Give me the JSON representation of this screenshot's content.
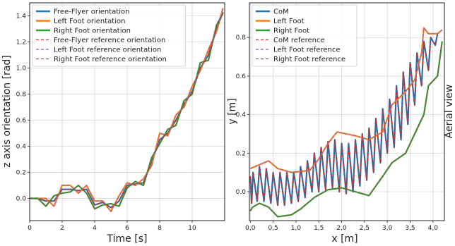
{
  "chart_data": [
    {
      "type": "line",
      "title": "",
      "xlabel": "Time [s]",
      "ylabel": "z axis orientation [rad]",
      "xlim": [
        0,
        12
      ],
      "ylim": [
        -0.17,
        1.5
      ],
      "xticks": [
        0,
        2,
        4,
        6,
        8,
        10
      ],
      "yticks": [
        0.0,
        0.2,
        0.4,
        0.6,
        0.8,
        1.0,
        1.2,
        1.4
      ],
      "xtick_labels": [
        "0",
        "2",
        "4",
        "6",
        "8",
        "10"
      ],
      "ytick_labels": [
        "0.0",
        "0.2",
        "0.4",
        "0.6",
        "0.8",
        "1.0",
        "1.2",
        "1.4"
      ],
      "grid": true,
      "legend_position": "top-left",
      "series": [
        {
          "name": "Free-Flyer orientation",
          "color": "#1f77b4",
          "style": "solid",
          "x": [
            0,
            0.5,
            1,
            1.5,
            2,
            2.5,
            3,
            3.5,
            4,
            4.5,
            5,
            5.5,
            6,
            6.5,
            7,
            7.5,
            8,
            8.5,
            9,
            9.5,
            10,
            10.5,
            11,
            11.5,
            11.9
          ],
          "y": [
            0,
            0,
            -0.02,
            -0.02,
            0.07,
            0.07,
            0.06,
            0.07,
            -0.05,
            -0.03,
            -0.07,
            -0.02,
            0.1,
            0.11,
            0.12,
            0.28,
            0.45,
            0.5,
            0.6,
            0.72,
            0.82,
            1.0,
            1.1,
            1.3,
            1.43
          ]
        },
        {
          "name": "Left Foot orientation",
          "color": "#ff7f0e",
          "style": "solid",
          "x": [
            0,
            0.5,
            1,
            1.5,
            2,
            2.5,
            3,
            3.5,
            4,
            4.5,
            5,
            5.5,
            6,
            6.5,
            7,
            7.5,
            8,
            8.5,
            9,
            9.5,
            10,
            10.5,
            11,
            11.5,
            11.9
          ],
          "y": [
            0,
            0,
            0,
            -0.06,
            0.1,
            0.1,
            0.04,
            0.1,
            -0.02,
            -0.02,
            -0.1,
            0.02,
            0.12,
            0.1,
            0.15,
            0.25,
            0.5,
            0.48,
            0.64,
            0.7,
            0.86,
            0.98,
            1.14,
            1.28,
            1.46
          ]
        },
        {
          "name": "Right Foot orientation",
          "color": "#2ca02c",
          "style": "solid",
          "x": [
            0,
            0.5,
            1,
            1.5,
            2,
            2.5,
            3,
            3.5,
            4,
            4.5,
            5,
            5.5,
            6,
            6.5,
            7,
            7.5,
            8,
            8.5,
            9,
            9.5,
            10,
            10.5,
            11,
            11.5,
            11.9
          ],
          "y": [
            0,
            0,
            -0.06,
            0.02,
            0.04,
            0.05,
            0.1,
            0.04,
            -0.08,
            -0.05,
            -0.04,
            -0.06,
            0.08,
            0.13,
            0.1,
            0.31,
            0.42,
            0.53,
            0.56,
            0.75,
            0.8,
            1.04,
            1.06,
            1.33,
            1.42
          ]
        },
        {
          "name": "Free-Flyer reference orientation",
          "color": "#d62728",
          "style": "dashed",
          "x": [
            0,
            0.5,
            1,
            1.5,
            2,
            2.5,
            3,
            3.5,
            4,
            4.5,
            5,
            5.5,
            6,
            6.5,
            7,
            7.5,
            8,
            8.5,
            9,
            9.5,
            10,
            10.5,
            11,
            11.5,
            11.9
          ],
          "y": [
            0,
            0,
            -0.02,
            -0.02,
            0.07,
            0.07,
            0.06,
            0.07,
            -0.05,
            -0.03,
            -0.07,
            -0.02,
            0.1,
            0.11,
            0.12,
            0.28,
            0.45,
            0.5,
            0.6,
            0.72,
            0.82,
            1.0,
            1.1,
            1.3,
            1.43
          ]
        },
        {
          "name": "Left Foot reference orientation",
          "color": "#9467bd",
          "style": "dashed",
          "x": [
            0,
            0.5,
            1,
            1.5,
            2,
            2.5,
            3,
            3.5,
            4,
            4.5,
            5,
            5.5,
            6,
            6.5,
            7,
            7.5,
            8,
            8.5,
            9,
            9.5,
            10,
            10.5,
            11,
            11.5,
            11.9
          ],
          "y": [
            0,
            0,
            0,
            -0.06,
            0.1,
            0.1,
            0.04,
            0.1,
            -0.02,
            -0.02,
            -0.1,
            0.02,
            0.12,
            0.1,
            0.15,
            0.25,
            0.5,
            0.48,
            0.64,
            0.7,
            0.86,
            0.98,
            1.14,
            1.28,
            1.46
          ]
        },
        {
          "name": "Right Foot reference orientation",
          "color": "#8c564b",
          "style": "dashed",
          "x": [
            0,
            0.5,
            1,
            1.5,
            2,
            2.5,
            3,
            3.5,
            4,
            4.5,
            5,
            5.5,
            6,
            6.5,
            7,
            7.5,
            8,
            8.5,
            9,
            9.5,
            10,
            10.5,
            11,
            11.5,
            11.9
          ],
          "y": [
            0,
            0,
            -0.06,
            0.02,
            0.04,
            0.05,
            0.1,
            0.04,
            -0.08,
            -0.05,
            -0.04,
            -0.06,
            0.08,
            0.13,
            0.1,
            0.31,
            0.42,
            0.53,
            0.56,
            0.75,
            0.8,
            1.04,
            1.06,
            1.33,
            1.42
          ]
        }
      ]
    },
    {
      "type": "line",
      "title": "",
      "xlabel": "x [m]",
      "ylabel": "y [m]",
      "side_label": "Aerial view",
      "xlim": [
        -0.02,
        4.25
      ],
      "ylim": [
        -0.15,
        0.98
      ],
      "xticks": [
        0.0,
        0.5,
        1.0,
        1.5,
        2.0,
        2.5,
        3.0,
        3.5,
        4.0
      ],
      "yticks": [
        0.0,
        0.2,
        0.4,
        0.6,
        0.8
      ],
      "xtick_labels": [
        "0,0",
        "0,5",
        "1,0",
        "1,5",
        "2,0",
        "2,5",
        "3,0",
        "3,5",
        "4,0"
      ],
      "ytick_labels": [
        "0.0",
        "0.2",
        "0.4",
        "0.6",
        "0.8"
      ],
      "grid": true,
      "legend_position": "top-left",
      "series": [
        {
          "name": "CoM",
          "color": "#1f77b4",
          "style": "solid",
          "x": [
            0,
            0.03,
            0.06,
            0.15,
            0.2,
            0.3,
            0.35,
            0.45,
            0.5,
            0.6,
            0.65,
            0.75,
            0.8,
            0.9,
            0.95,
            1.05,
            1.1,
            1.2,
            1.25,
            1.35,
            1.4,
            1.5,
            1.55,
            1.65,
            1.7,
            1.8,
            1.85,
            1.95,
            2.0,
            2.1,
            2.15,
            2.25,
            2.3,
            2.4,
            2.45,
            2.55,
            2.6,
            2.7,
            2.75,
            2.85,
            2.9,
            3.0,
            3.05,
            3.15,
            3.2,
            3.3,
            3.35,
            3.45,
            3.5,
            3.6,
            3.65,
            3.75,
            3.8,
            3.9,
            3.95,
            4.05,
            4.1
          ],
          "y": [
            0.08,
            -0.06,
            0.1,
            -0.05,
            0.13,
            -0.05,
            0.12,
            -0.06,
            0.1,
            -0.07,
            0.1,
            -0.07,
            0.1,
            -0.06,
            0.1,
            -0.05,
            0.13,
            -0.03,
            0.16,
            0.0,
            0.2,
            0.0,
            0.23,
            0.01,
            0.26,
            0.02,
            0.27,
            0.0,
            0.25,
            -0.01,
            0.25,
            0.0,
            0.27,
            0.03,
            0.3,
            0.06,
            0.33,
            0.1,
            0.38,
            0.15,
            0.43,
            0.2,
            0.48,
            0.23,
            0.55,
            0.27,
            0.62,
            0.35,
            0.67,
            0.45,
            0.72,
            0.55,
            0.78,
            0.63,
            0.8,
            0.76,
            0.82
          ]
        },
        {
          "name": "Left Foot",
          "color": "#ff7f0e",
          "style": "solid",
          "x": [
            0,
            0.1,
            0.4,
            0.6,
            0.9,
            1.3,
            1.5,
            1.7,
            1.9,
            2.1,
            2.3,
            2.6,
            2.9,
            3.1,
            3.4,
            3.6,
            3.75,
            3.8,
            3.9,
            4.1,
            4.2
          ],
          "y": [
            0.12,
            0.13,
            0.16,
            0.12,
            0.1,
            0.11,
            0.17,
            0.25,
            0.31,
            0.3,
            0.29,
            0.27,
            0.31,
            0.45,
            0.52,
            0.58,
            0.72,
            0.85,
            0.82,
            0.82,
            0.84
          ]
        },
        {
          "name": "Right Foot",
          "color": "#2ca02c",
          "style": "solid",
          "x": [
            0,
            0.05,
            0.2,
            0.4,
            0.6,
            0.9,
            1.1,
            1.4,
            1.7,
            2.0,
            2.3,
            2.6,
            2.9,
            3.1,
            3.4,
            3.6,
            3.8,
            3.9,
            4.1,
            4.2
          ],
          "y": [
            -0.1,
            -0.08,
            -0.06,
            -0.08,
            -0.13,
            -0.12,
            -0.09,
            -0.03,
            0.01,
            0.02,
            0.0,
            -0.02,
            0.08,
            0.15,
            0.2,
            0.3,
            0.4,
            0.55,
            0.6,
            0.78
          ]
        },
        {
          "name": "CoM reference",
          "color": "#d62728",
          "style": "dashed",
          "x": [
            0,
            0.03,
            0.06,
            0.15,
            0.2,
            0.3,
            0.35,
            0.45,
            0.5,
            0.6,
            0.65,
            0.75,
            0.8,
            0.9,
            0.95,
            1.05,
            1.1,
            1.2,
            1.25,
            1.35,
            1.4,
            1.5,
            1.55,
            1.65,
            1.7,
            1.8,
            1.85,
            1.95,
            2.0,
            2.1,
            2.15,
            2.25,
            2.3,
            2.4,
            2.45,
            2.55,
            2.6,
            2.7,
            2.75,
            2.85,
            2.9,
            3.0,
            3.05,
            3.15,
            3.2,
            3.3,
            3.35,
            3.45,
            3.5,
            3.6,
            3.65,
            3.75,
            3.8,
            3.9,
            3.95,
            4.05,
            4.1
          ],
          "y": [
            0.08,
            -0.06,
            0.1,
            -0.05,
            0.13,
            -0.05,
            0.12,
            -0.06,
            0.1,
            -0.07,
            0.1,
            -0.07,
            0.1,
            -0.06,
            0.1,
            -0.05,
            0.13,
            -0.03,
            0.16,
            0.0,
            0.2,
            0.0,
            0.23,
            0.01,
            0.26,
            0.02,
            0.27,
            0.0,
            0.25,
            -0.01,
            0.25,
            0.0,
            0.27,
            0.03,
            0.3,
            0.06,
            0.33,
            0.1,
            0.38,
            0.15,
            0.43,
            0.2,
            0.48,
            0.23,
            0.55,
            0.27,
            0.62,
            0.35,
            0.67,
            0.45,
            0.72,
            0.55,
            0.78,
            0.63,
            0.8,
            0.76,
            0.82
          ]
        },
        {
          "name": "Left Foot reference",
          "color": "#9467bd",
          "style": "dashed",
          "x": [
            0,
            0.1,
            0.4,
            0.6,
            0.9,
            1.3,
            1.5,
            1.7,
            1.9,
            2.1,
            2.3,
            2.6,
            2.9,
            3.1,
            3.4,
            3.6,
            3.75,
            3.8,
            3.9,
            4.1,
            4.2
          ],
          "y": [
            0.12,
            0.13,
            0.16,
            0.12,
            0.1,
            0.11,
            0.17,
            0.25,
            0.31,
            0.3,
            0.29,
            0.27,
            0.31,
            0.45,
            0.52,
            0.58,
            0.72,
            0.85,
            0.82,
            0.82,
            0.84
          ]
        },
        {
          "name": "Right Foot reference",
          "color": "#8c564b",
          "style": "dashed",
          "x": [
            0,
            0.05,
            0.2,
            0.4,
            0.6,
            0.9,
            1.1,
            1.4,
            1.7,
            2.0,
            2.3,
            2.6,
            2.9,
            3.1,
            3.4,
            3.6,
            3.8,
            3.9,
            4.1,
            4.2
          ],
          "y": [
            -0.1,
            -0.08,
            -0.06,
            -0.08,
            -0.13,
            -0.12,
            -0.09,
            -0.03,
            0.01,
            0.02,
            0.0,
            -0.02,
            0.08,
            0.15,
            0.2,
            0.3,
            0.4,
            0.55,
            0.6,
            0.78
          ]
        }
      ]
    }
  ]
}
